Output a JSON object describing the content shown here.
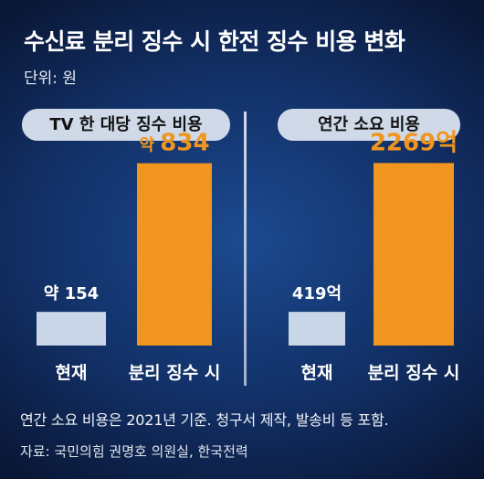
{
  "title": "수신료 분리 징수 시 한전 징수 비용 변화",
  "unit_label": "단위: 원",
  "note": "연간 소요 비용은 2021년 기준. 청구서 제작, 발송비 등 포함.",
  "source": "자료: 국민의힘 권명호 의원실, 한국전력",
  "colors": {
    "current": "#c9d6e8",
    "separate": "#f0951f",
    "pill": "#cfd9e8"
  },
  "chart_data": [
    {
      "type": "bar",
      "title": "TV 한 대당 징수 비용",
      "categories": [
        "현재",
        "분리 징수 시"
      ],
      "values": [
        154,
        834
      ],
      "data_labels": [
        {
          "prefix": "약",
          "value": "154"
        },
        {
          "prefix": "약",
          "value": "834"
        }
      ],
      "ylim": [
        0,
        920
      ]
    },
    {
      "type": "bar",
      "title": "연간 소요 비용",
      "categories": [
        "현재",
        "분리 징수 시"
      ],
      "values": [
        419,
        2269
      ],
      "data_labels": [
        {
          "prefix": "",
          "value": "419억"
        },
        {
          "prefix": "",
          "value": "2269억"
        }
      ],
      "ylim": [
        0,
        2500
      ]
    }
  ]
}
